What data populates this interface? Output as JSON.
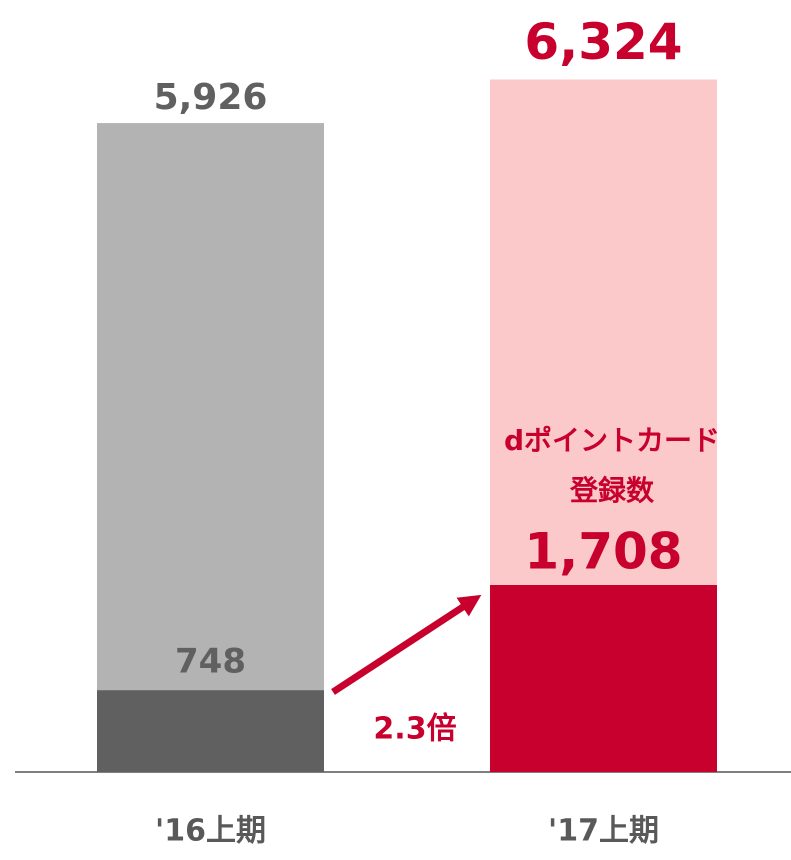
{
  "chart_data": {
    "type": "stacked_bar",
    "categories": [
      "'16上期",
      "'17上期"
    ],
    "series": [
      {
        "values": [
          748,
          1708
        ],
        "value_labels": [
          "748",
          "1,708"
        ],
        "colors": [
          "#606060",
          "#c8002d"
        ],
        "label_colors": [
          "#606060",
          "#c8002d"
        ]
      },
      {
        "values": [
          5178,
          4616
        ],
        "colors": [
          "#b3b3b3",
          "#fbc9ca"
        ]
      }
    ],
    "totals": [
      5926,
      6324
    ],
    "total_labels": [
      "5,926",
      "6,324"
    ],
    "total_label_colors": [
      "#606060",
      "#c8002d"
    ],
    "ylim": [
      0,
      7050
    ],
    "annotations": [
      {
        "lines": [
          "dポイントカード",
          "登録数"
        ],
        "color": "#c8002d"
      },
      {
        "text": "2.3倍",
        "color": "#c8002d"
      }
    ]
  }
}
